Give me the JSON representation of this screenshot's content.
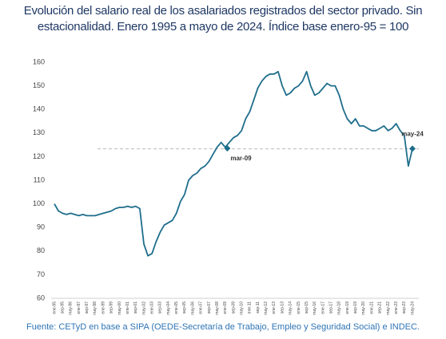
{
  "chart_data": {
    "type": "line",
    "title": "Evolución del salario real de los asalariados registrados del sector privado. Sin estacionalidad. Enero 1995 a mayo de 2024. Índice base enero-95 = 100",
    "source": "Fuente: CETyD en base a SIPA (OEDE-Secretaría de Trabajo, Empleo y Seguridad Social) e INDEC.",
    "categories": [
      "ene-95",
      null,
      "sep-95",
      null,
      "may-96",
      null,
      "ene-97",
      null,
      "sep-97",
      null,
      "may-98",
      null,
      "ene-99",
      null,
      "sep-99",
      null,
      "may-00",
      null,
      "ene-01",
      null,
      "sep-01",
      null,
      "may-02",
      null,
      "ene-03",
      null,
      "sep-03",
      null,
      "may-04",
      null,
      "ene-05",
      null,
      "sep-05",
      null,
      "may-06",
      null,
      "ene-07",
      null,
      "sep-07",
      null,
      "may-08",
      null,
      "ene-09",
      null,
      "sep-09",
      null,
      "may-10",
      null,
      "ene-11",
      null,
      "sep-11",
      null,
      "may-12",
      null,
      "ene-13",
      null,
      "sep-13",
      null,
      "may-14",
      null,
      "ene-15",
      null,
      "sep-15",
      null,
      "may-16",
      null,
      "ene-17",
      null,
      "sep-17",
      null,
      "may-18",
      null,
      "ene-19",
      null,
      "sep-19",
      null,
      "may-20",
      null,
      "ene-21",
      null,
      "sep-21",
      null,
      "may-22",
      null,
      "ene-23",
      null,
      "sep-23",
      null,
      "may-24"
    ],
    "values": [
      100,
      97,
      96,
      95.5,
      96,
      95.5,
      95,
      95.5,
      95,
      95,
      95,
      95.5,
      96,
      96.5,
      97,
      98,
      98.5,
      98.5,
      99,
      98.5,
      99,
      98,
      83,
      78,
      79,
      84,
      88,
      91,
      92,
      93,
      96,
      101,
      104,
      110,
      112,
      113,
      115,
      116,
      118,
      121,
      124,
      126,
      124,
      126,
      128,
      129,
      131,
      136,
      139,
      144,
      149,
      152,
      154,
      155,
      155,
      156,
      150,
      146,
      147,
      149,
      150,
      152,
      156,
      150,
      146,
      147,
      149,
      151,
      150,
      150,
      146,
      140,
      136,
      134,
      136,
      133,
      133,
      132,
      131,
      131,
      132,
      133,
      131,
      132,
      134,
      131,
      129,
      116,
      123.4
    ],
    "color": "#1f6e8c",
    "ylim": [
      60,
      160
    ],
    "yticks": [
      60,
      70,
      80,
      90,
      100,
      110,
      120,
      130,
      140,
      150,
      160
    ],
    "reference_line": 123.3,
    "annotations": [
      {
        "label": "mar-09",
        "value": 123.5
      },
      {
        "label": "may-24",
        "value": 123.4
      }
    ]
  }
}
